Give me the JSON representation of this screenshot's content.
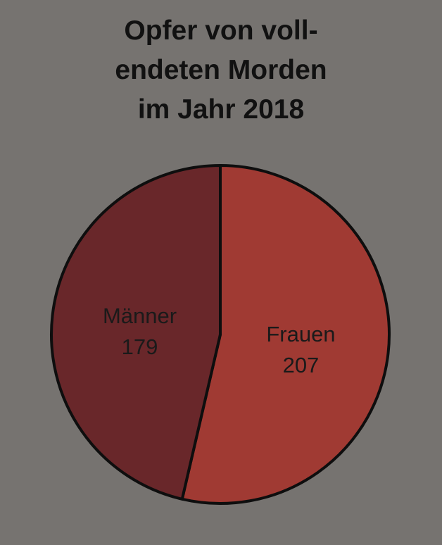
{
  "chart_data": {
    "type": "pie",
    "title_lines": [
      "Opfer von voll-",
      "endeten Morden",
      "im Jahr 2018"
    ],
    "slices": [
      {
        "label": "Frauen",
        "value": 207,
        "value_text": "207",
        "color": "#a03a33"
      },
      {
        "label": "Männer",
        "value": 179,
        "value_text": "179",
        "color": "#69272a"
      }
    ],
    "start_angle_deg": 0,
    "direction": "clockwise",
    "legend": "none"
  }
}
